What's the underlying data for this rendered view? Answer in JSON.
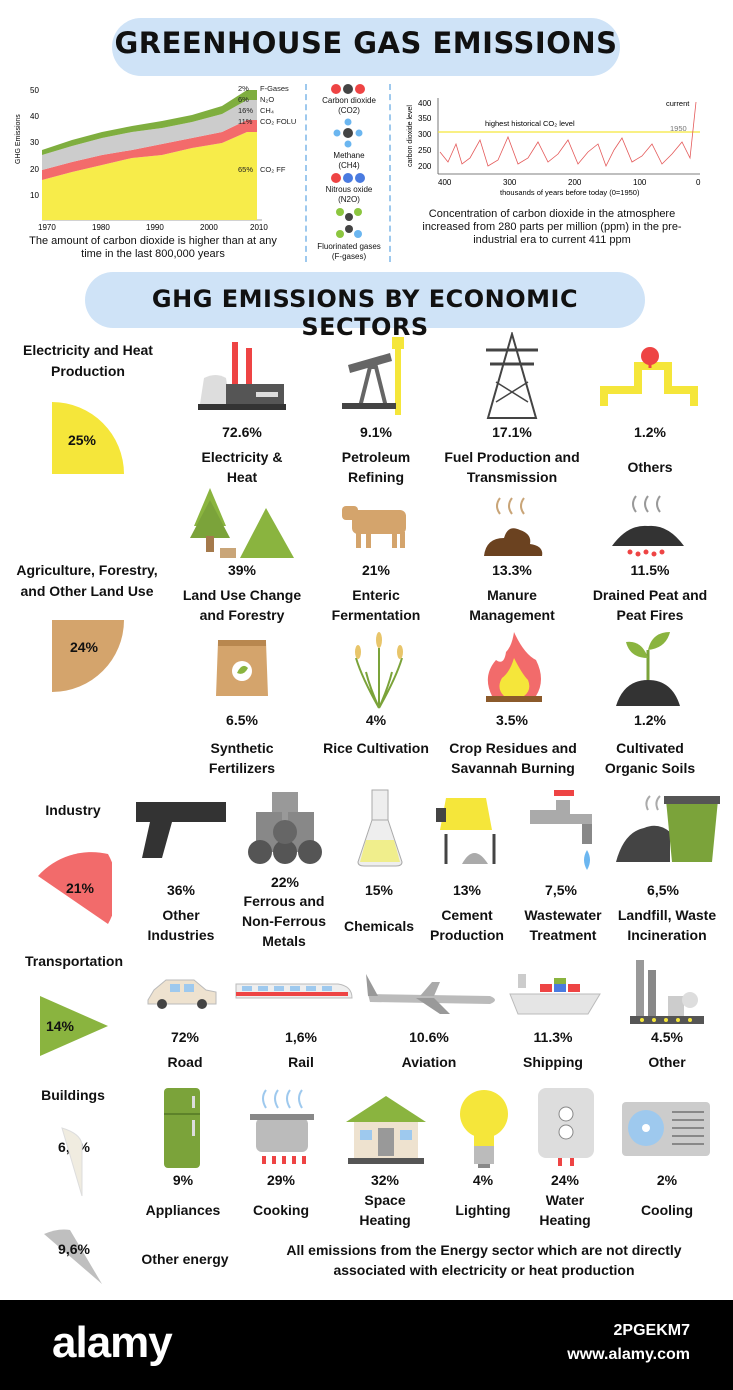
{
  "title": "GREENHOUSE GAS EMISSIONS",
  "subtitle": "GHG EMISSIONS BY ECONOMIC SECTORS",
  "area_chart": {
    "ylabel": "GHG Emissions",
    "yticks": [
      "50",
      "40",
      "30",
      "20",
      "10"
    ],
    "xticks": [
      "1970",
      "1980",
      "1990",
      "2000",
      "2010"
    ],
    "legend": [
      {
        "pct": "2%",
        "name": "F-Gases"
      },
      {
        "pct": "6%",
        "name": "N₂O"
      },
      {
        "pct": "16%",
        "name": "CH₄"
      },
      {
        "pct": "11%",
        "name": "CO₂ FOLU"
      },
      {
        "pct": "65%",
        "name": "CO₂ FF"
      }
    ],
    "caption": "The amount of carbon dioxide is higher than at any time in the last 800,000 years"
  },
  "molecules": [
    {
      "name": "Carbon dioxide",
      "formula": "(CO2)"
    },
    {
      "name": "Methane",
      "formula": "(CH4)"
    },
    {
      "name": "Nitrous oxide",
      "formula": "(N2O)"
    },
    {
      "name": "Fluorinated gases",
      "formula": "(F-gases)"
    }
  ],
  "co2_chart": {
    "ylabel": "carbon dioxide level",
    "yticks": [
      "400",
      "350",
      "300",
      "250",
      "200"
    ],
    "xticks": [
      "400",
      "300",
      "200",
      "100",
      "0"
    ],
    "xlabel": "thousands of years before today (0=1950)",
    "annotation_max": "highest historical CO₂ level",
    "annotation_current": "current",
    "annotation_1950": "1950",
    "caption": "Concentration of carbon dioxide in the atmosphere increased from 280 parts per million (ppm) in the pre-industrial era to current 411 ppm"
  },
  "sectors": {
    "electricity": {
      "name": "Electricity and Heat Production",
      "share": "25%",
      "items": [
        {
          "pct": "72.6%",
          "label": "Electricity & Heat"
        },
        {
          "pct": "9.1%",
          "label": "Petroleum Refining"
        },
        {
          "pct": "17.1%",
          "label": "Fuel Production and Transmission"
        },
        {
          "pct": "1.2%",
          "label": "Others"
        }
      ]
    },
    "agriculture": {
      "name": "Agriculture, Forestry, and Other Land Use",
      "share": "24%",
      "items": [
        {
          "pct": "39%",
          "label": "Land Use Change and Forestry"
        },
        {
          "pct": "21%",
          "label": "Enteric Fermentation"
        },
        {
          "pct": "13.3%",
          "label": "Manure Management"
        },
        {
          "pct": "11.5%",
          "label": "Drained Peat and Peat Fires"
        },
        {
          "pct": "6.5%",
          "label": "Synthetic Fertilizers"
        },
        {
          "pct": "4%",
          "label": "Rice Cultivation"
        },
        {
          "pct": "3.5%",
          "label": "Crop Residues and Savannah Burning"
        },
        {
          "pct": "1.2%",
          "label": "Cultivated Organic Soils"
        }
      ]
    },
    "industry": {
      "name": "Industry",
      "share": "21%",
      "items": [
        {
          "pct": "36%",
          "label": "Other Industries"
        },
        {
          "pct": "22%",
          "label": "Ferrous and Non-Ferrous Metals"
        },
        {
          "pct": "15%",
          "label": "Chemicals"
        },
        {
          "pct": "13%",
          "label": "Cement Production"
        },
        {
          "pct": "7,5%",
          "label": "Wastewater Treatment"
        },
        {
          "pct": "6,5%",
          "label": "Landfill, Waste Incineration"
        }
      ]
    },
    "transport": {
      "name": "Transportation",
      "share": "14%",
      "items": [
        {
          "pct": "72%",
          "label": "Road"
        },
        {
          "pct": "1,6%",
          "label": "Rail"
        },
        {
          "pct": "10.6%",
          "label": "Aviation"
        },
        {
          "pct": "11.3%",
          "label": "Shipping"
        },
        {
          "pct": "4.5%",
          "label": "Other"
        }
      ]
    },
    "buildings": {
      "name": "Buildings",
      "share": "6,4%",
      "items": [
        {
          "pct": "9%",
          "label": "Appliances"
        },
        {
          "pct": "29%",
          "label": "Cooking"
        },
        {
          "pct": "32%",
          "label": "Space Heating"
        },
        {
          "pct": "4%",
          "label": "Lighting"
        },
        {
          "pct": "24%",
          "label": "Water Heating"
        },
        {
          "pct": "2%",
          "label": "Cooling"
        }
      ]
    },
    "other": {
      "name": "Other energy",
      "share": "9,6%",
      "description": "All emissions from the Energy sector which are not directly associated with electricity or heat production"
    }
  },
  "colors": {
    "yellow": "#f5e63a",
    "tan": "#d4a46c",
    "red": "#f26b6b",
    "green": "#8ab43f",
    "gray": "#bfbfbf",
    "cloud": "#cfe3f7"
  },
  "footer": {
    "brand": "alamy",
    "image_id": "2PGEKM7",
    "url": "www.alamy.com"
  }
}
